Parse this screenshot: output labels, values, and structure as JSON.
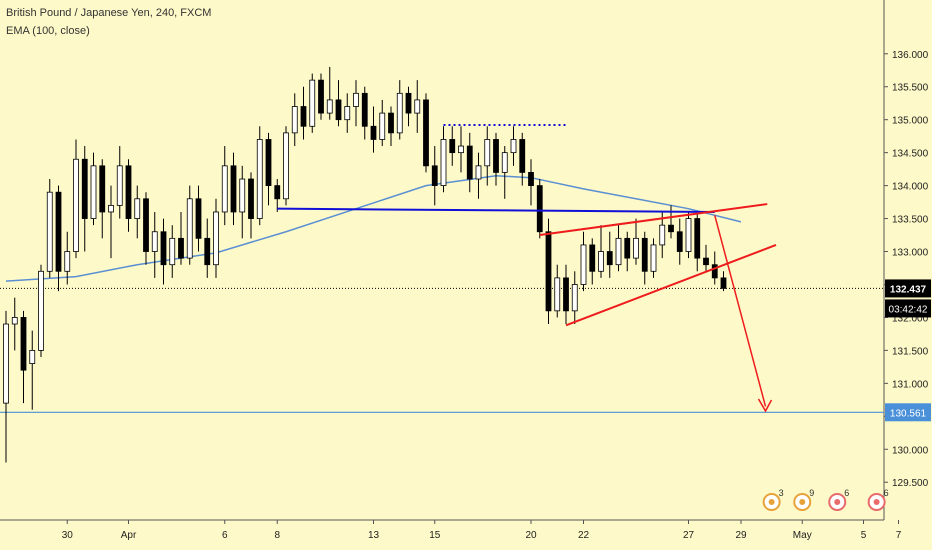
{
  "header": {
    "title": "British Pound / Japanese Yen, 240, FXCM",
    "indicator": "EMA (100, close)"
  },
  "chart_data": {
    "type": "candlestick",
    "symbol": "British Pound / Japanese Yen",
    "interval": "240",
    "source": "FXCM",
    "ylim": [
      129.2,
      136.3
    ],
    "y_ticks": [
      "136.000",
      "135.500",
      "135.000",
      "134.500",
      "134.000",
      "133.500",
      "133.000",
      "132.500",
      "132.000",
      "131.500",
      "131.000",
      "130.500",
      "130.000",
      "129.500"
    ],
    "x_ticks": [
      {
        "label": "30",
        "bar": 7
      },
      {
        "label": "Apr",
        "bar": 14
      },
      {
        "label": "6",
        "bar": 25
      },
      {
        "label": "8",
        "bar": 31
      },
      {
        "label": "13",
        "bar": 42
      },
      {
        "label": "15",
        "bar": 49
      },
      {
        "label": "20",
        "bar": 60
      },
      {
        "label": "22",
        "bar": 66
      },
      {
        "label": "27",
        "bar": 78
      },
      {
        "label": "29",
        "bar": 84
      },
      {
        "label": "May",
        "bar": 91
      },
      {
        "label": "5",
        "bar": 98
      },
      {
        "label": "7",
        "bar": 102
      }
    ],
    "candles": [
      [
        130.7,
        132.1,
        129.8,
        131.9
      ],
      [
        131.9,
        132.3,
        131.5,
        132.0
      ],
      [
        132.0,
        132.1,
        130.7,
        131.2
      ],
      [
        131.3,
        131.8,
        130.6,
        131.5
      ],
      [
        131.5,
        132.8,
        131.4,
        132.7
      ],
      [
        132.7,
        134.1,
        132.6,
        133.9
      ],
      [
        133.9,
        134.0,
        132.4,
        132.7
      ],
      [
        132.7,
        133.3,
        132.5,
        133.0
      ],
      [
        133.0,
        134.7,
        132.9,
        134.4
      ],
      [
        134.4,
        134.6,
        133.0,
        133.5
      ],
      [
        133.5,
        134.5,
        133.4,
        134.3
      ],
      [
        134.3,
        134.4,
        133.2,
        133.6
      ],
      [
        133.6,
        134.0,
        132.9,
        133.7
      ],
      [
        133.7,
        134.6,
        133.5,
        134.3
      ],
      [
        134.3,
        134.4,
        133.3,
        133.5
      ],
      [
        133.5,
        134.0,
        133.2,
        133.8
      ],
      [
        133.8,
        133.9,
        132.8,
        133.0
      ],
      [
        133.0,
        133.6,
        132.6,
        133.3
      ],
      [
        133.3,
        133.5,
        132.5,
        132.8
      ],
      [
        132.8,
        133.4,
        132.6,
        133.2
      ],
      [
        133.2,
        133.6,
        132.8,
        132.9
      ],
      [
        132.9,
        134.0,
        132.8,
        133.8
      ],
      [
        133.8,
        134.0,
        133.0,
        133.2
      ],
      [
        133.2,
        133.5,
        132.6,
        132.8
      ],
      [
        132.8,
        133.8,
        132.6,
        133.6
      ],
      [
        133.6,
        134.6,
        133.4,
        134.3
      ],
      [
        134.3,
        134.5,
        133.4,
        133.6
      ],
      [
        133.6,
        134.3,
        133.2,
        134.1
      ],
      [
        134.1,
        134.2,
        133.2,
        133.5
      ],
      [
        133.5,
        134.9,
        133.4,
        134.7
      ],
      [
        134.7,
        134.8,
        133.7,
        134.0
      ],
      [
        134.0,
        134.1,
        133.6,
        133.8
      ],
      [
        133.8,
        134.9,
        133.7,
        134.8
      ],
      [
        134.8,
        135.4,
        134.6,
        135.2
      ],
      [
        135.2,
        135.5,
        134.7,
        134.9
      ],
      [
        134.9,
        135.7,
        134.8,
        135.6
      ],
      [
        135.6,
        135.7,
        135.0,
        135.1
      ],
      [
        135.1,
        135.8,
        135.0,
        135.3
      ],
      [
        135.3,
        135.6,
        134.9,
        135.0
      ],
      [
        135.0,
        135.4,
        134.8,
        135.2
      ],
      [
        135.2,
        135.6,
        134.9,
        135.4
      ],
      [
        135.4,
        135.5,
        134.7,
        134.9
      ],
      [
        134.9,
        135.2,
        134.5,
        134.7
      ],
      [
        134.7,
        135.3,
        134.6,
        135.1
      ],
      [
        135.1,
        135.2,
        134.6,
        134.8
      ],
      [
        134.8,
        135.6,
        134.7,
        135.4
      ],
      [
        135.4,
        135.5,
        134.9,
        135.1
      ],
      [
        135.1,
        135.6,
        134.8,
        135.3
      ],
      [
        135.3,
        135.4,
        134.2,
        134.3
      ],
      [
        134.3,
        134.6,
        133.7,
        134.0
      ],
      [
        134.0,
        134.9,
        133.9,
        134.7
      ],
      [
        134.7,
        134.9,
        134.3,
        134.5
      ],
      [
        134.5,
        134.9,
        134.2,
        134.6
      ],
      [
        134.6,
        134.8,
        133.9,
        134.1
      ],
      [
        134.1,
        134.5,
        133.8,
        134.3
      ],
      [
        134.3,
        134.9,
        134.0,
        134.7
      ],
      [
        134.7,
        134.8,
        134.0,
        134.2
      ],
      [
        134.2,
        134.6,
        133.8,
        134.5
      ],
      [
        134.5,
        134.9,
        134.3,
        134.7
      ],
      [
        134.7,
        134.8,
        134.0,
        134.2
      ],
      [
        134.2,
        134.4,
        133.7,
        134.0
      ],
      [
        134.0,
        134.1,
        133.2,
        133.3
      ],
      [
        133.3,
        133.5,
        131.9,
        132.1
      ],
      [
        132.1,
        132.8,
        132.0,
        132.6
      ],
      [
        132.6,
        132.8,
        131.9,
        132.1
      ],
      [
        132.1,
        132.7,
        131.9,
        132.5
      ],
      [
        132.5,
        133.3,
        132.4,
        133.1
      ],
      [
        133.1,
        133.2,
        132.5,
        132.7
      ],
      [
        132.7,
        133.4,
        132.6,
        133.0
      ],
      [
        133.0,
        133.3,
        132.6,
        132.8
      ],
      [
        132.8,
        133.4,
        132.7,
        133.2
      ],
      [
        133.2,
        133.3,
        132.7,
        132.9
      ],
      [
        132.9,
        133.5,
        132.8,
        133.2
      ],
      [
        133.2,
        133.3,
        132.5,
        132.7
      ],
      [
        132.7,
        133.2,
        132.6,
        133.1
      ],
      [
        133.1,
        133.6,
        132.9,
        133.4
      ],
      [
        133.4,
        133.7,
        133.2,
        133.3
      ],
      [
        133.3,
        133.5,
        132.8,
        133.0
      ],
      [
        133.0,
        133.6,
        132.9,
        133.5
      ],
      [
        133.5,
        133.6,
        132.7,
        132.9
      ],
      [
        132.9,
        133.1,
        132.7,
        132.8
      ],
      [
        132.8,
        133.0,
        132.5,
        132.6
      ],
      [
        132.6,
        132.7,
        132.4,
        132.44
      ]
    ],
    "ema": [
      [
        0,
        132.55
      ],
      [
        8,
        132.62
      ],
      [
        15,
        132.8
      ],
      [
        24,
        132.98
      ],
      [
        32,
        133.3
      ],
      [
        40,
        133.65
      ],
      [
        48,
        134.0
      ],
      [
        56,
        134.15
      ],
      [
        60,
        134.12
      ],
      [
        66,
        133.95
      ],
      [
        72,
        133.8
      ],
      [
        78,
        133.65
      ],
      [
        84,
        133.45
      ]
    ],
    "last_price": "132.437",
    "countdown": "03:42:42",
    "level_label": "130.561",
    "level_value": 130.561,
    "colors": {
      "bull": "#ffffff",
      "bear": "#000000",
      "ema": "#5a8fd3",
      "support": "#1010d8",
      "wedge": "#ee1c1c",
      "level": "#4a90d9",
      "price_tag": "#000000",
      "level_tag": "#4a90d9",
      "background": "#fdf9c8"
    },
    "events": [
      {
        "icon": "earnings-icon",
        "count": "3"
      },
      {
        "icon": "earnings-icon",
        "count": "9"
      },
      {
        "icon": "dividend-icon",
        "count": "6"
      },
      {
        "icon": "dividend-icon",
        "count": "6"
      }
    ]
  }
}
